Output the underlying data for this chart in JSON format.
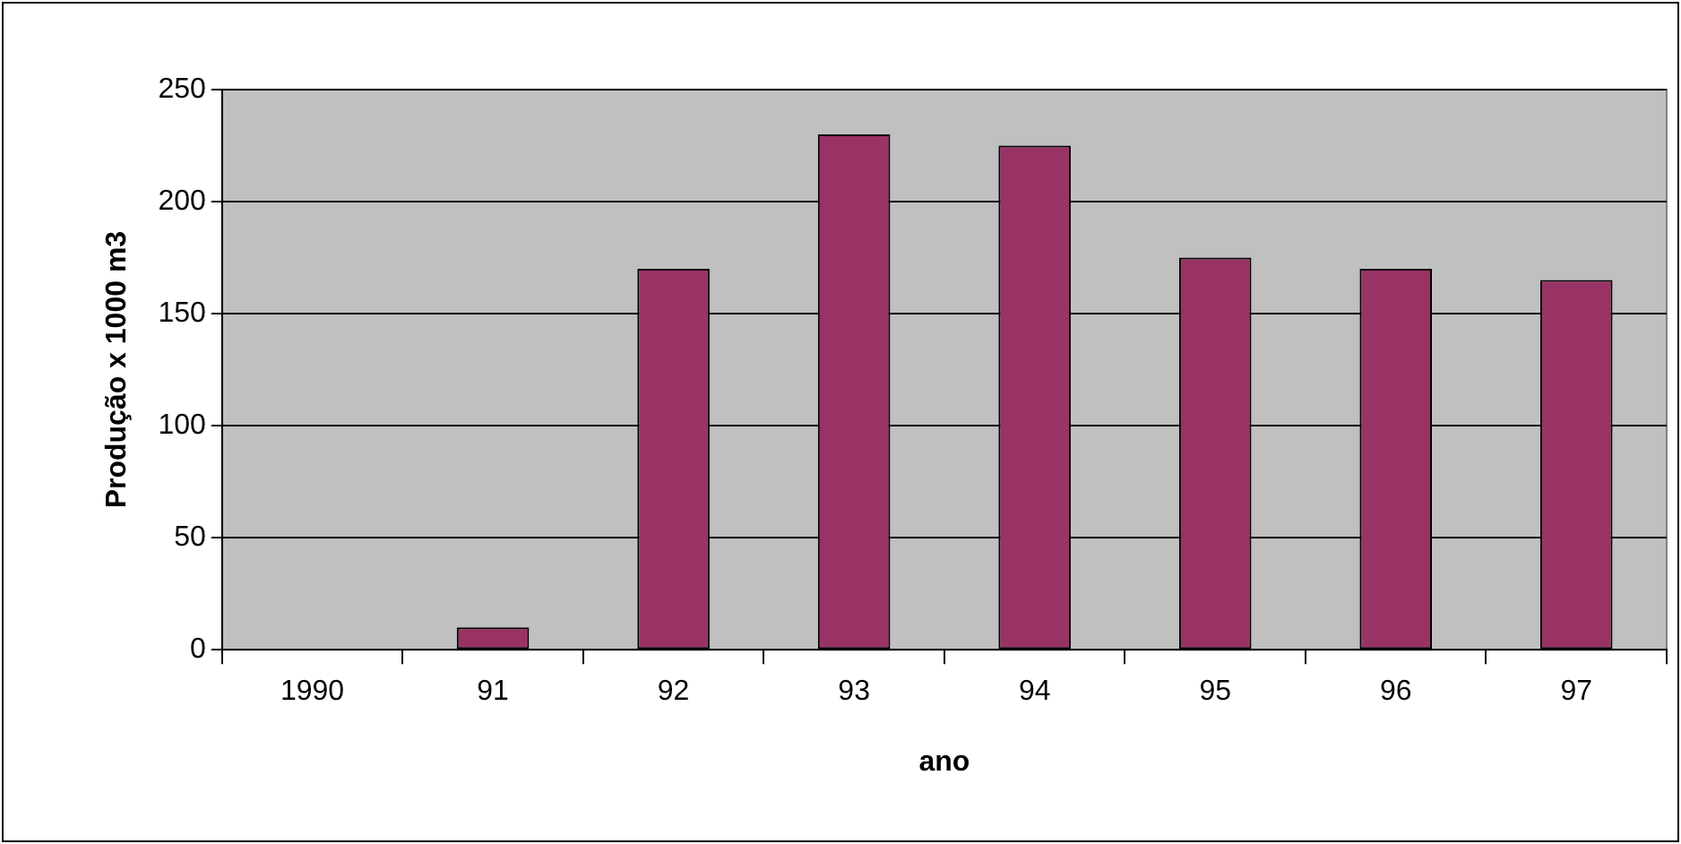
{
  "chart_data": {
    "type": "bar",
    "xlabel": "ano",
    "ylabel": "Produção x 1000 m3",
    "categories": [
      "1990",
      "91",
      "92",
      "93",
      "94",
      "95",
      "96",
      "97"
    ],
    "values": [
      0,
      10,
      170,
      230,
      225,
      175,
      170,
      165
    ],
    "color": "#993366",
    "ylim": [
      0,
      250
    ],
    "yticks": [
      0,
      50,
      100,
      150,
      200,
      250
    ],
    "grid": "y",
    "legend": false
  }
}
